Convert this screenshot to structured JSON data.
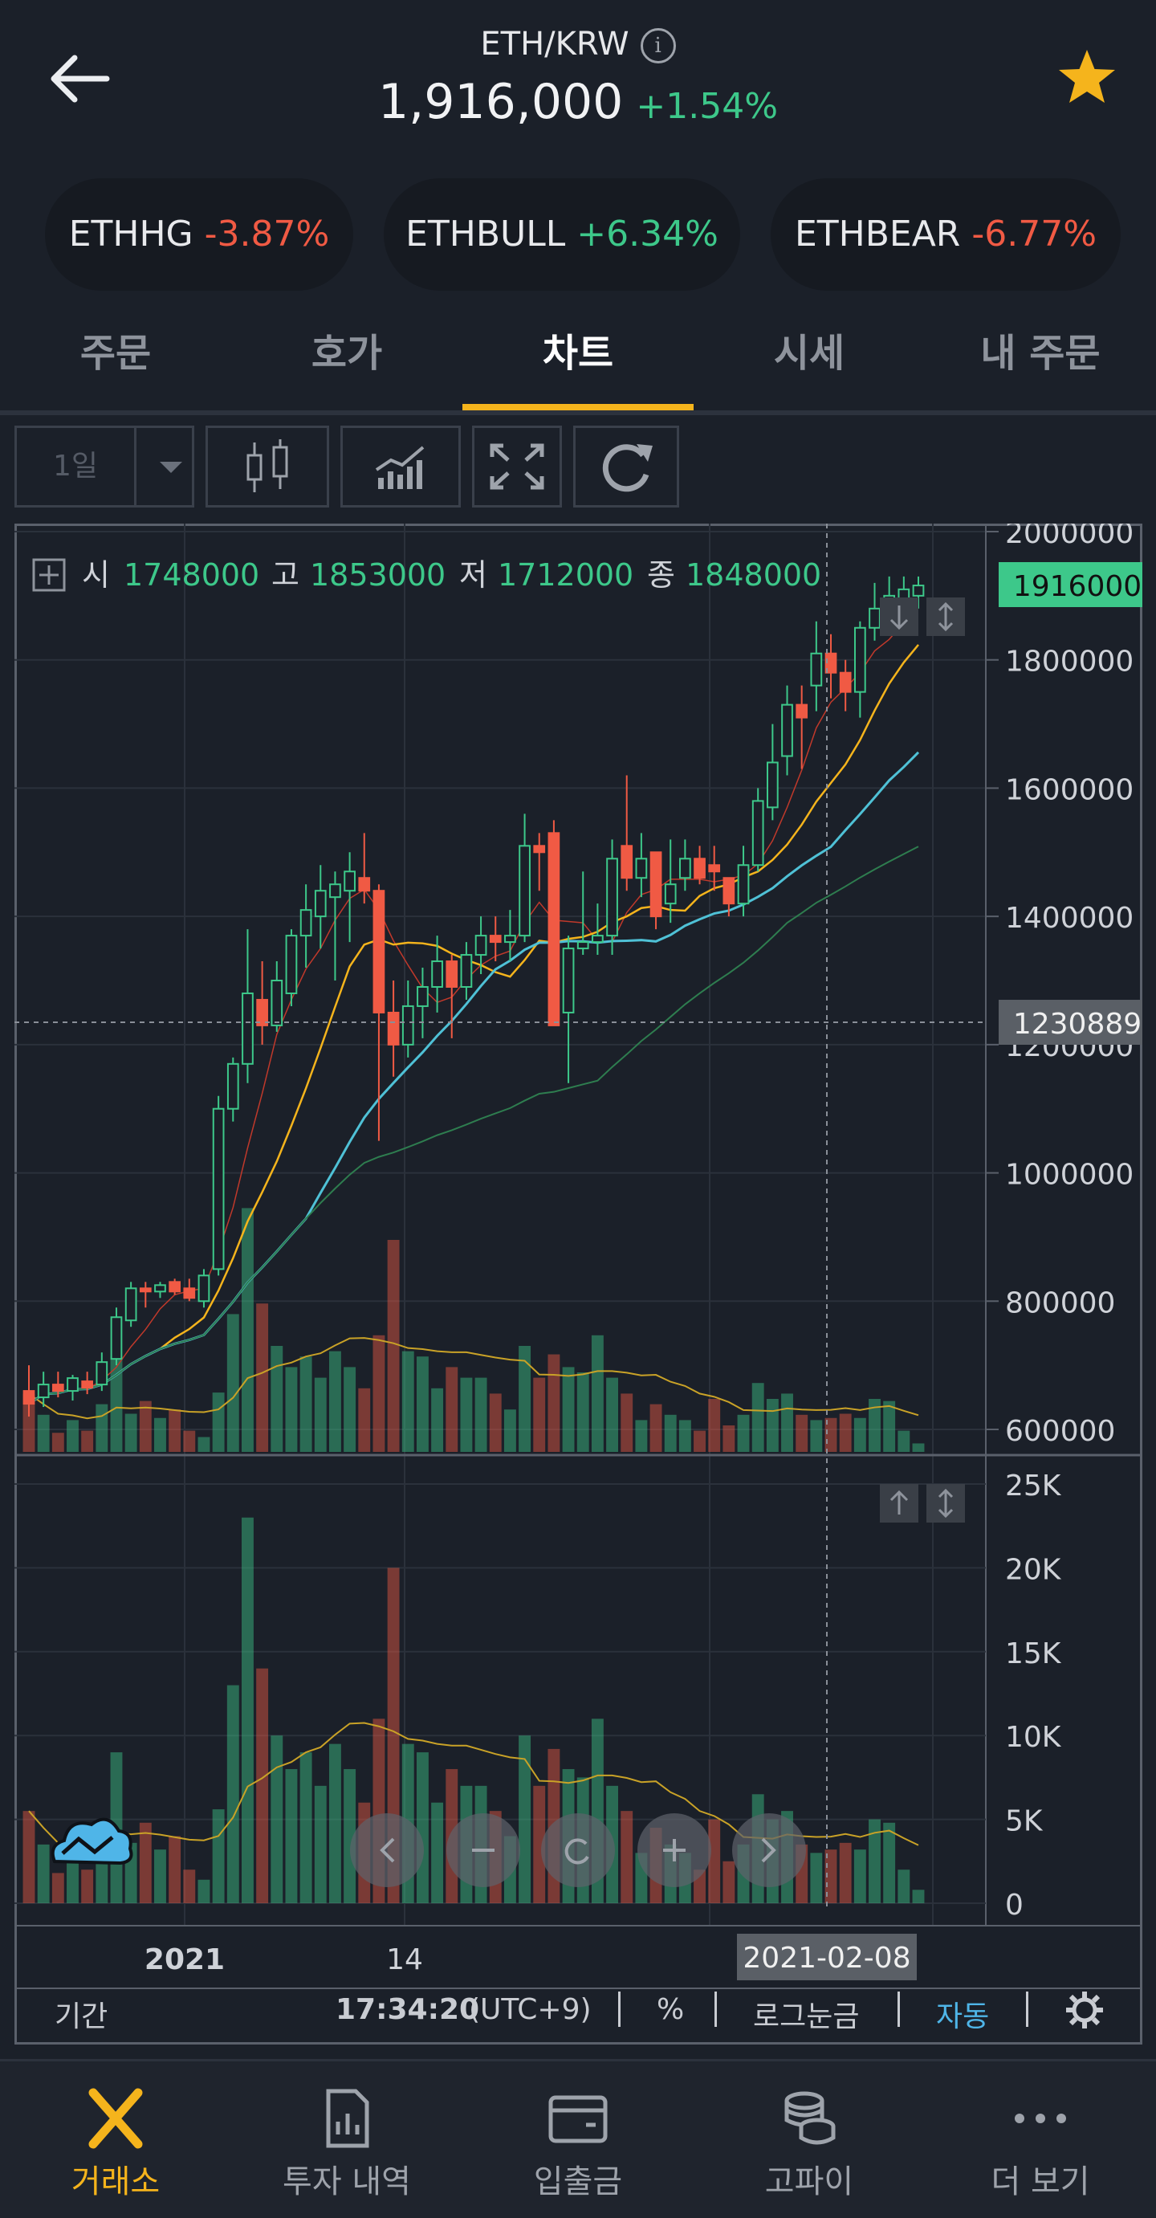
{
  "header": {
    "pair": "ETH/KRW",
    "info_icon": "info-icon",
    "price": "1,916,000",
    "change": "+1.54%",
    "back_icon": "arrow-left-icon",
    "favorite_icon": "star-icon"
  },
  "related": [
    {
      "symbol": "ETHHG",
      "change": "-3.87%"
    },
    {
      "symbol": "ETHBULL",
      "change": "+6.34%"
    },
    {
      "symbol": "ETHBEAR",
      "change": "-6.77%"
    }
  ],
  "tabs": [
    "주문",
    "호가",
    "차트",
    "시세",
    "내 주문"
  ],
  "active_tab": "차트",
  "toolbar": {
    "interval": "1일",
    "icons": [
      "candlestick-icon",
      "indicator-icon",
      "fullscreen-icon",
      "refresh-icon"
    ]
  },
  "ohlc": {
    "open_label": "시",
    "open": "1748000",
    "high_label": "고",
    "high": "1853000",
    "low_label": "저",
    "low": "1712000",
    "close_label": "종",
    "close": "1848000"
  },
  "price_tags": {
    "last": "1916000",
    "crosshair": "1230889"
  },
  "x_axis": {
    "labels": [
      "2021",
      "14"
    ],
    "crosshair_date": "2021-02-08"
  },
  "chart_footer": {
    "period": "기간",
    "time": "17:34:20",
    "tz": "(UTC+9)",
    "percent": "%",
    "log": "로그눈금",
    "auto": "자동",
    "settings_icon": "gear-icon"
  },
  "chart_nav_buttons": [
    "chevron-left-icon",
    "minus-icon",
    "reset-icon",
    "plus-icon",
    "chevron-right-icon"
  ],
  "nav": [
    {
      "label": "거래소",
      "icon": "exchange-icon",
      "active": true
    },
    {
      "label": "투자 내역",
      "icon": "report-icon",
      "active": false
    },
    {
      "label": "입출금",
      "icon": "wallet-icon",
      "active": false
    },
    {
      "label": "고파이",
      "icon": "coins-icon",
      "active": false
    },
    {
      "label": "더 보기",
      "icon": "more-icon",
      "active": false
    }
  ],
  "colors": {
    "up": "#3dc88a",
    "down": "#f05a44",
    "accent": "#f5b41c",
    "link": "#4fb5e8"
  },
  "chart_data": {
    "type": "candlestick",
    "price_axis": {
      "ticks": [
        600000,
        800000,
        1000000,
        1200000,
        1400000,
        1600000,
        1800000,
        2000000
      ]
    },
    "volume_axis": {
      "ticks": [
        "0",
        "5K",
        "10K",
        "15K",
        "20K",
        "25K"
      ]
    },
    "ohlc": [
      [
        660000,
        700000,
        620000,
        640000
      ],
      [
        650000,
        690000,
        635000,
        670000
      ],
      [
        670000,
        690000,
        650000,
        660000
      ],
      [
        660000,
        685000,
        645000,
        680000
      ],
      [
        675000,
        690000,
        655000,
        665000
      ],
      [
        670000,
        720000,
        660000,
        705000
      ],
      [
        710000,
        790000,
        700000,
        775000
      ],
      [
        770000,
        830000,
        760000,
        820000
      ],
      [
        820000,
        830000,
        790000,
        815000
      ],
      [
        815000,
        830000,
        805000,
        825000
      ],
      [
        830000,
        835000,
        810000,
        815000
      ],
      [
        820000,
        835000,
        800000,
        805000
      ],
      [
        800000,
        850000,
        790000,
        840000
      ],
      [
        850000,
        1120000,
        840000,
        1100000
      ],
      [
        1100000,
        1180000,
        1080000,
        1170000
      ],
      [
        1170000,
        1380000,
        1140000,
        1280000
      ],
      [
        1270000,
        1330000,
        1200000,
        1230000
      ],
      [
        1230000,
        1330000,
        1220000,
        1300000
      ],
      [
        1280000,
        1380000,
        1260000,
        1370000
      ],
      [
        1370000,
        1450000,
        1320000,
        1410000
      ],
      [
        1400000,
        1480000,
        1350000,
        1440000
      ],
      [
        1430000,
        1470000,
        1300000,
        1450000
      ],
      [
        1440000,
        1500000,
        1360000,
        1470000
      ],
      [
        1460000,
        1530000,
        1420000,
        1440000
      ],
      [
        1440000,
        1450000,
        1050000,
        1250000
      ],
      [
        1250000,
        1300000,
        1150000,
        1200000
      ],
      [
        1200000,
        1300000,
        1180000,
        1260000
      ],
      [
        1260000,
        1320000,
        1210000,
        1290000
      ],
      [
        1290000,
        1370000,
        1250000,
        1330000
      ],
      [
        1330000,
        1340000,
        1210000,
        1290000
      ],
      [
        1290000,
        1360000,
        1270000,
        1340000
      ],
      [
        1340000,
        1400000,
        1310000,
        1370000
      ],
      [
        1370000,
        1400000,
        1330000,
        1360000
      ],
      [
        1360000,
        1410000,
        1330000,
        1370000
      ],
      [
        1370000,
        1560000,
        1360000,
        1510000
      ],
      [
        1510000,
        1530000,
        1440000,
        1500000
      ],
      [
        1530000,
        1550000,
        1230000,
        1230000
      ],
      [
        1250000,
        1370000,
        1140000,
        1350000
      ],
      [
        1350000,
        1470000,
        1340000,
        1360000
      ],
      [
        1360000,
        1420000,
        1340000,
        1370000
      ],
      [
        1370000,
        1520000,
        1340000,
        1490000
      ],
      [
        1510000,
        1620000,
        1440000,
        1460000
      ],
      [
        1460000,
        1530000,
        1430000,
        1490000
      ],
      [
        1500000,
        1500000,
        1380000,
        1400000
      ],
      [
        1420000,
        1520000,
        1390000,
        1450000
      ],
      [
        1460000,
        1520000,
        1440000,
        1490000
      ],
      [
        1490000,
        1510000,
        1450000,
        1460000
      ],
      [
        1480000,
        1510000,
        1440000,
        1470000
      ],
      [
        1460000,
        1460000,
        1400000,
        1420000
      ],
      [
        1420000,
        1510000,
        1400000,
        1480000
      ],
      [
        1480000,
        1600000,
        1470000,
        1580000
      ],
      [
        1570000,
        1700000,
        1550000,
        1640000
      ],
      [
        1650000,
        1760000,
        1620000,
        1730000
      ],
      [
        1730000,
        1760000,
        1630000,
        1710000
      ],
      [
        1760000,
        1860000,
        1720000,
        1810000
      ],
      [
        1810000,
        1840000,
        1740000,
        1780000
      ],
      [
        1780000,
        1800000,
        1720000,
        1750000
      ],
      [
        1750000,
        1860000,
        1710000,
        1850000
      ],
      [
        1850000,
        1920000,
        1830000,
        1880000
      ],
      [
        1880000,
        1930000,
        1850000,
        1900000
      ],
      [
        1890000,
        1930000,
        1850000,
        1910000
      ],
      [
        1900000,
        1930000,
        1880000,
        1916000
      ]
    ],
    "volume": [
      5500,
      3500,
      1800,
      3000,
      2000,
      4500,
      9000,
      3600,
      4800,
      3200,
      4000,
      2000,
      1400,
      5600,
      13000,
      23000,
      14000,
      10000,
      8000,
      9000,
      7000,
      9500,
      8000,
      6000,
      11000,
      20000,
      9500,
      9000,
      6000,
      8000,
      7000,
      7000,
      5500,
      4000,
      10000,
      7000,
      9200,
      8000,
      7500,
      11000,
      7000,
      5500,
      3000,
      4500,
      3500,
      3000,
      2000,
      5000,
      2500,
      3500,
      6500,
      5000,
      5500,
      3500,
      3000,
      3200,
      3600,
      3200,
      5000,
      4800,
      2000,
      800
    ]
  }
}
